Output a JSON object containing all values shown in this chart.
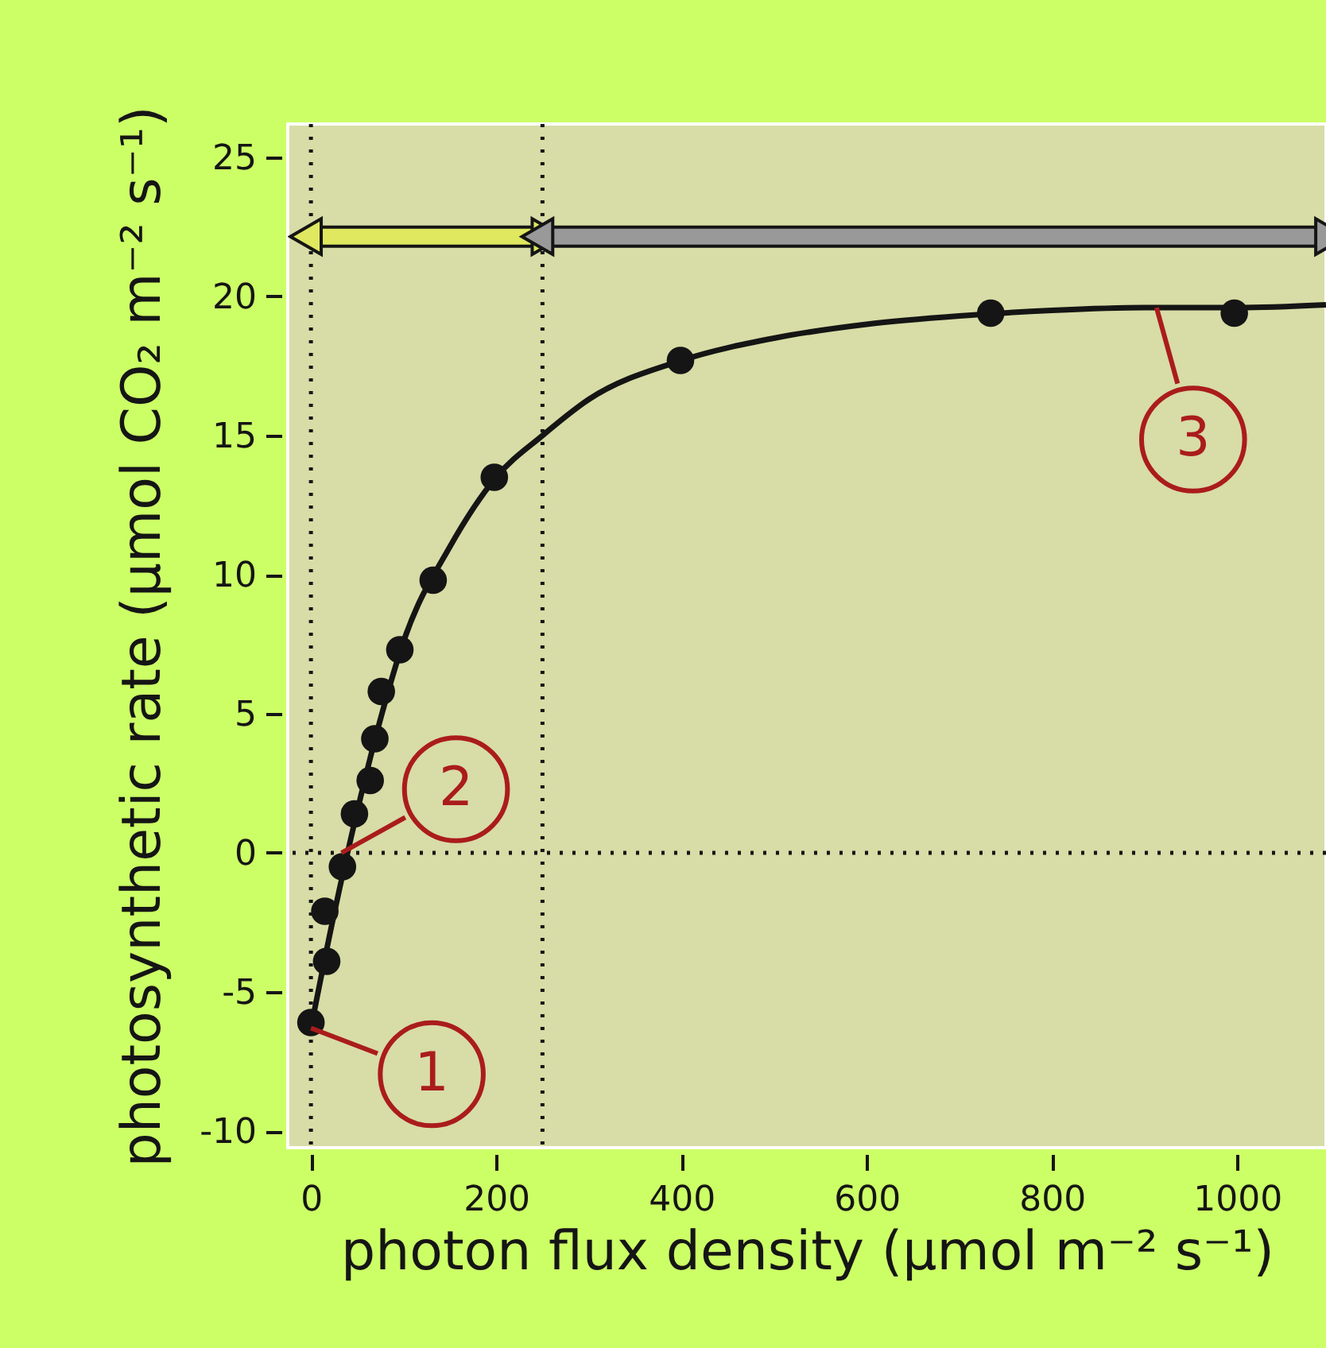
{
  "chart_data": {
    "type": "scatter",
    "xlabel": "photon flux density (µmol m⁻² s⁻¹)",
    "ylabel": "photosynthetic rate (µmol CO₂ m⁻² s⁻¹)",
    "xlim": [
      -25,
      1096
    ],
    "ylim": [
      -10.6,
      26.2
    ],
    "xticks": [
      0,
      200,
      400,
      600,
      800,
      1000
    ],
    "yticks": [
      -10,
      -5,
      0,
      5,
      10,
      15,
      20,
      25
    ],
    "grid": false,
    "series": [
      {
        "type": "scatter",
        "color": "#151515",
        "marker": "circle",
        "x": [
          0,
          17,
          15,
          34,
          47,
          64,
          69,
          76,
          96,
          132,
          198,
          399,
          734,
          997
        ],
        "values": [
          -6.1,
          -3.9,
          -2.1,
          -0.5,
          1.4,
          2.6,
          4.1,
          5.8,
          7.3,
          9.8,
          13.5,
          17.7,
          19.4,
          19.4
        ]
      },
      {
        "type": "line",
        "color": "#151515",
        "marker": "none",
        "line_style": "solid",
        "x": [
          0,
          25,
          50,
          75,
          100,
          150,
          200,
          250,
          300,
          400,
          500,
          600,
          700,
          800,
          900,
          1000,
          1096
        ],
        "values": [
          -6.3,
          -2.2,
          1.5,
          4.8,
          7.6,
          11.0,
          13.5,
          15.0,
          16.3,
          17.7,
          18.5,
          19.0,
          19.3,
          19.5,
          19.6,
          19.6,
          19.7
        ]
      }
    ],
    "ref_lines": [
      {
        "axis": "x",
        "value": 0,
        "line_style": "dotted",
        "color": "#151515"
      },
      {
        "axis": "x",
        "value": 250,
        "line_style": "dotted",
        "color": "#151515"
      },
      {
        "axis": "y",
        "value": 0,
        "line_style": "dotted",
        "color": "#151515"
      }
    ],
    "annotations": [
      {
        "text": "1",
        "x": 0,
        "y": -6.3
      },
      {
        "text": "2",
        "x": 33,
        "y": 0
      },
      {
        "text": "3",
        "x": 913,
        "y": 19.6
      }
    ]
  }
}
